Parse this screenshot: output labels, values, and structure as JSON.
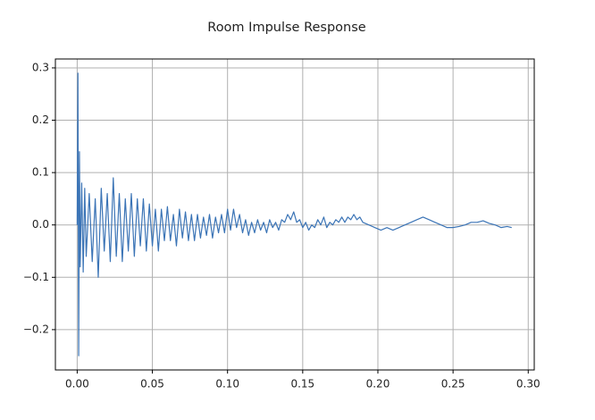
{
  "chart_data": {
    "type": "line",
    "title": "Room Impulse Response",
    "x": [
      0.0,
      0.0005,
      0.001,
      0.0015,
      0.002,
      0.003,
      0.004,
      0.005,
      0.006,
      0.008,
      0.01,
      0.012,
      0.014,
      0.016,
      0.018,
      0.02,
      0.022,
      0.024,
      0.026,
      0.028,
      0.03,
      0.032,
      0.034,
      0.036,
      0.038,
      0.04,
      0.042,
      0.044,
      0.046,
      0.048,
      0.05,
      0.052,
      0.054,
      0.056,
      0.058,
      0.06,
      0.062,
      0.064,
      0.066,
      0.068,
      0.07,
      0.072,
      0.074,
      0.076,
      0.078,
      0.08,
      0.082,
      0.084,
      0.086,
      0.088,
      0.09,
      0.092,
      0.094,
      0.096,
      0.098,
      0.1,
      0.102,
      0.104,
      0.106,
      0.108,
      0.11,
      0.112,
      0.114,
      0.116,
      0.118,
      0.12,
      0.122,
      0.124,
      0.126,
      0.128,
      0.13,
      0.132,
      0.134,
      0.136,
      0.138,
      0.14,
      0.142,
      0.144,
      0.146,
      0.148,
      0.15,
      0.152,
      0.154,
      0.156,
      0.158,
      0.16,
      0.162,
      0.164,
      0.166,
      0.168,
      0.17,
      0.172,
      0.174,
      0.176,
      0.178,
      0.18,
      0.182,
      0.184,
      0.186,
      0.188,
      0.19,
      0.194,
      0.198,
      0.202,
      0.206,
      0.21,
      0.214,
      0.218,
      0.222,
      0.226,
      0.23,
      0.234,
      0.238,
      0.242,
      0.246,
      0.25,
      0.254,
      0.258,
      0.262,
      0.266,
      0.27,
      0.274,
      0.278,
      0.282,
      0.286,
      0.289
    ],
    "series": [
      {
        "name": "Room Impulse Response",
        "color": "#3b74b6",
        "values": [
          0.0,
          0.29,
          -0.25,
          0.14,
          -0.08,
          0.08,
          -0.09,
          0.07,
          -0.06,
          0.06,
          -0.07,
          0.05,
          -0.1,
          0.07,
          -0.05,
          0.06,
          -0.07,
          0.09,
          -0.06,
          0.06,
          -0.07,
          0.05,
          -0.05,
          0.06,
          -0.06,
          0.05,
          -0.04,
          0.05,
          -0.05,
          0.04,
          -0.04,
          0.03,
          -0.05,
          0.03,
          -0.03,
          0.035,
          -0.03,
          0.02,
          -0.04,
          0.03,
          -0.025,
          0.025,
          -0.03,
          0.02,
          -0.03,
          0.02,
          -0.025,
          0.015,
          -0.02,
          0.02,
          -0.025,
          0.015,
          -0.015,
          0.02,
          -0.015,
          0.03,
          -0.01,
          0.03,
          -0.005,
          0.02,
          -0.015,
          0.01,
          -0.02,
          0.005,
          -0.015,
          0.01,
          -0.01,
          0.005,
          -0.015,
          0.01,
          -0.005,
          0.005,
          -0.01,
          0.01,
          0.005,
          0.02,
          0.01,
          0.025,
          0.005,
          0.01,
          -0.005,
          0.005,
          -0.01,
          0.0,
          -0.005,
          0.01,
          0.0,
          0.015,
          -0.005,
          0.005,
          0.0,
          0.01,
          0.005,
          0.015,
          0.005,
          0.015,
          0.01,
          0.02,
          0.01,
          0.015,
          0.005,
          0.0,
          -0.005,
          -0.01,
          -0.005,
          -0.01,
          -0.005,
          0.0,
          0.005,
          0.01,
          0.015,
          0.01,
          0.005,
          0.0,
          -0.005,
          -0.005,
          -0.003,
          0.0,
          0.005,
          0.005,
          0.008,
          0.003,
          0.0,
          -0.005,
          -0.003,
          -0.005
        ]
      }
    ],
    "xlim": [
      -0.0145,
      0.304
    ],
    "ylim": [
      -0.277,
      0.317
    ],
    "xticks": [
      {
        "value": 0,
        "label": "0.00"
      },
      {
        "value": 0.05,
        "label": "0.05"
      },
      {
        "value": 0.1,
        "label": "0.10"
      },
      {
        "value": 0.15,
        "label": "0.15"
      },
      {
        "value": 0.2,
        "label": "0.20"
      },
      {
        "value": 0.25,
        "label": "0.25"
      },
      {
        "value": 0.3,
        "label": "0.30"
      }
    ],
    "yticks": [
      {
        "value": -0.2,
        "label": "−0.2"
      },
      {
        "value": -0.1,
        "label": "−0.1"
      },
      {
        "value": 0,
        "label": "0.0"
      },
      0.1,
      0.2,
      0.3
    ],
    "grid": true
  }
}
